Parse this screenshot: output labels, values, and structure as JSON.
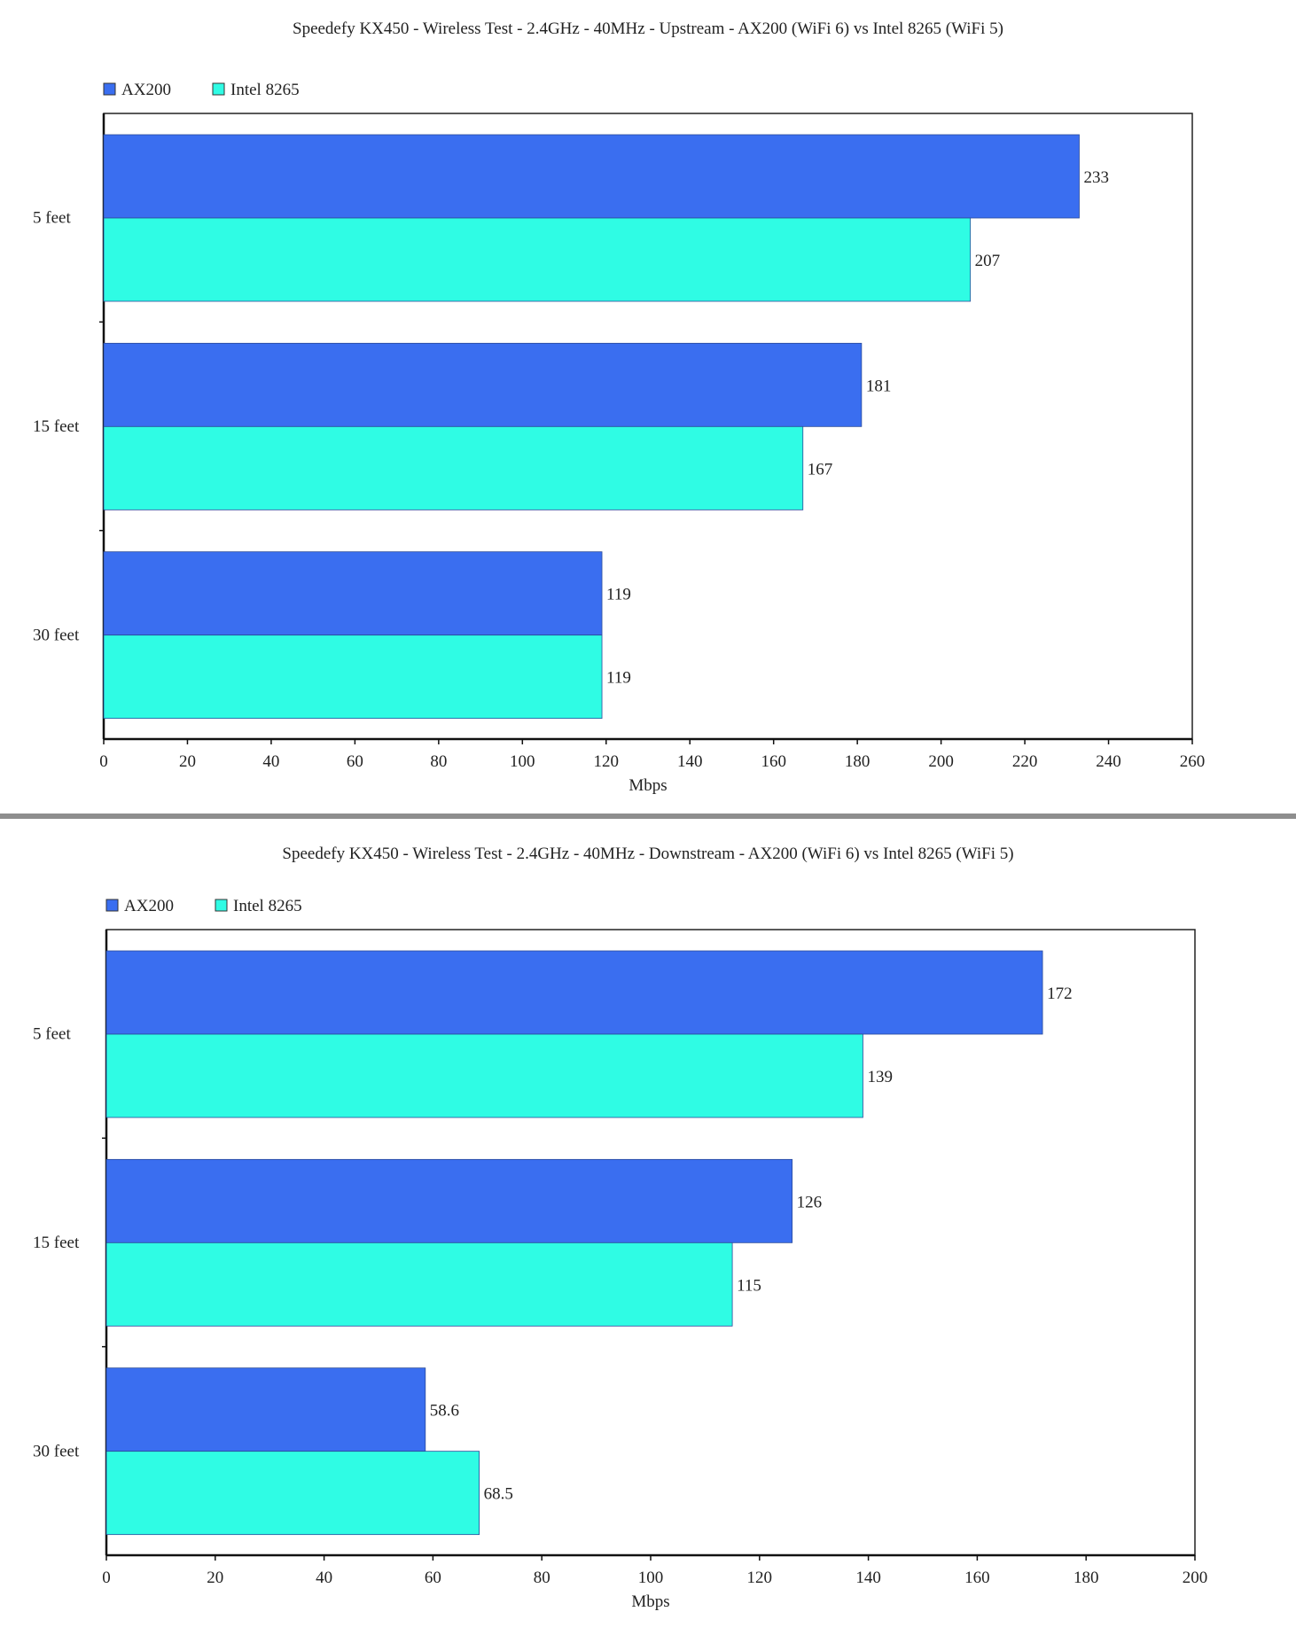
{
  "colors": {
    "ax200": "#3a6ef0",
    "intel": "#2ffce4",
    "separator": "#8e8e8e"
  },
  "chart_data": [
    {
      "type": "bar",
      "orientation": "horizontal",
      "title": "Speedefy KX450 - Wireless Test - 2.4GHz - 40MHz - Upstream - AX200 (WiFi 6) vs Intel 8265 (WiFi 5)",
      "categories": [
        "5  feet",
        "15 feet",
        "30 feet"
      ],
      "series": [
        {
          "name": "AX200",
          "color": "#3a6ef0",
          "values": [
            233,
            181,
            119
          ],
          "labels": [
            "233",
            "181",
            "119"
          ]
        },
        {
          "name": "Intel 8265",
          "color": "#2ffce4",
          "values": [
            207,
            167,
            119
          ],
          "labels": [
            "207",
            "167",
            "119"
          ]
        }
      ],
      "xlabel": "Mbps",
      "ylabel": "",
      "xlim": [
        0,
        260
      ],
      "xticks": [
        0,
        20,
        40,
        60,
        80,
        100,
        120,
        140,
        160,
        180,
        200,
        220,
        240,
        260
      ],
      "xtick_labels": [
        "0",
        "20",
        "40",
        "60",
        "80",
        "100",
        "120",
        "140",
        "160",
        "180",
        "200",
        "220",
        "240",
        "260"
      ],
      "grid": false,
      "legend": "top-left"
    },
    {
      "type": "bar",
      "orientation": "horizontal",
      "title": "Speedefy KX450 - Wireless Test - 2.4GHz - 40MHz - Downstream - AX200 (WiFi 6) vs Intel 8265 (WiFi 5)",
      "categories": [
        "5  feet",
        "15 feet",
        "30 feet"
      ],
      "series": [
        {
          "name": "AX200",
          "color": "#3a6ef0",
          "values": [
            172,
            126,
            58.6
          ],
          "labels": [
            "172",
            "126",
            "58.6"
          ]
        },
        {
          "name": "Intel 8265",
          "color": "#2ffce4",
          "values": [
            139,
            115,
            68.5
          ],
          "labels": [
            "139",
            "115",
            "68.5"
          ]
        }
      ],
      "xlabel": "Mbps",
      "ylabel": "",
      "xlim": [
        0,
        200
      ],
      "xticks": [
        0,
        20,
        40,
        60,
        80,
        100,
        120,
        140,
        160,
        180,
        200
      ],
      "xtick_labels": [
        "0",
        "20",
        "40",
        "60",
        "80",
        "100",
        "120",
        "140",
        "160",
        "180",
        "200"
      ],
      "grid": false,
      "legend": "top-left"
    }
  ]
}
